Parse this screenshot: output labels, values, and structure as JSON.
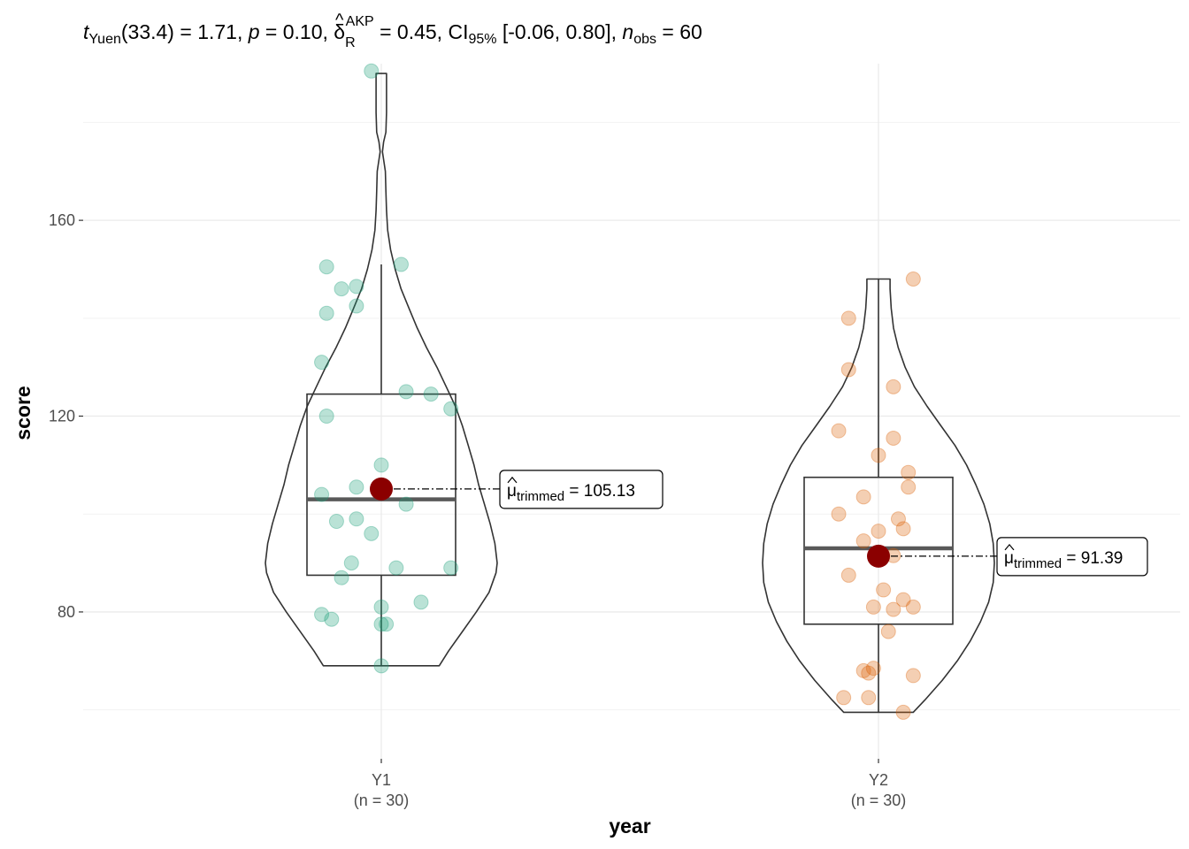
{
  "chart_data": {
    "type": "violin",
    "title": {
      "t_symbol": "t",
      "t_sub": "Yuen",
      "df": "(33.4)",
      "t_value": "1.71",
      "p_symbol": "p",
      "p_value": "0.10",
      "effect_symbol": "δ",
      "effect_hat": "^",
      "effect_sup": "AKP",
      "effect_sub": "R",
      "effect_value": "0.45",
      "ci_label": "CI",
      "ci_sub": "95%",
      "ci_value": "[-0.06, 0.80]",
      "n_symbol": "n",
      "n_sub": "obs",
      "n_value": "60"
    },
    "xlabel": "year",
    "ylabel": "score",
    "ylim": [
      50,
      192
    ],
    "y_ticks": [
      80,
      120,
      160
    ],
    "grid": true,
    "groups": [
      {
        "name": "Y1",
        "n_label": "(n = 30)",
        "color": "#1b9e77",
        "box": {
          "q1": 87.5,
          "median": 103,
          "q3": 124.5,
          "whisker_low": 69,
          "whisker_high": 151
        },
        "trimmed_mean": 105.13,
        "mean_label_sym": "μ",
        "mean_label_sub": "trimmed",
        "mean_label_value": "105.13",
        "violin": [
          [
            69,
            0.5
          ],
          [
            72,
            0.58
          ],
          [
            76,
            0.7
          ],
          [
            80,
            0.82
          ],
          [
            84,
            0.93
          ],
          [
            88,
            0.99
          ],
          [
            90,
            1.0
          ],
          [
            94,
            0.98
          ],
          [
            98,
            0.94
          ],
          [
            102,
            0.89
          ],
          [
            106,
            0.84
          ],
          [
            110,
            0.8
          ],
          [
            114,
            0.75
          ],
          [
            118,
            0.7
          ],
          [
            122,
            0.64
          ],
          [
            126,
            0.56
          ],
          [
            130,
            0.48
          ],
          [
            134,
            0.39
          ],
          [
            138,
            0.31
          ],
          [
            142,
            0.24
          ],
          [
            146,
            0.17
          ],
          [
            150,
            0.12
          ],
          [
            154,
            0.08
          ],
          [
            158,
            0.055
          ],
          [
            162,
            0.045
          ],
          [
            166,
            0.04
          ],
          [
            170,
            0.035
          ],
          [
            174,
            0.01
          ],
          [
            176,
            0.02
          ],
          [
            178,
            0.04
          ],
          [
            182,
            0.045
          ],
          [
            186,
            0.045
          ],
          [
            190,
            0.045
          ]
        ],
        "points": [
          [
            -0.02,
            190.5
          ],
          [
            0.04,
            151
          ],
          [
            -0.11,
            150.5
          ],
          [
            -0.08,
            146
          ],
          [
            -0.05,
            146.5
          ],
          [
            -0.05,
            142.5
          ],
          [
            -0.11,
            141
          ],
          [
            -0.12,
            131
          ],
          [
            -0.11,
            120
          ],
          [
            0.05,
            125
          ],
          [
            0.1,
            124.5
          ],
          [
            0.14,
            121.5
          ],
          [
            0.0,
            110
          ],
          [
            -0.05,
            105.5
          ],
          [
            -0.12,
            104
          ],
          [
            0.05,
            102
          ],
          [
            -0.05,
            99
          ],
          [
            -0.09,
            98.5
          ],
          [
            -0.02,
            96
          ],
          [
            -0.06,
            90
          ],
          [
            0.03,
            89
          ],
          [
            0.14,
            89
          ],
          [
            -0.08,
            87
          ],
          [
            0.0,
            81
          ],
          [
            0.08,
            82
          ],
          [
            -0.12,
            79.5
          ],
          [
            -0.1,
            78.5
          ],
          [
            0.0,
            77.5
          ],
          [
            0.01,
            77.5
          ],
          [
            0.0,
            69
          ]
        ]
      },
      {
        "name": "Y2",
        "n_label": "(n = 30)",
        "color": "#d95f02",
        "box": {
          "q1": 77.5,
          "median": 93,
          "q3": 107.5,
          "whisker_low": 59.5,
          "whisker_high": 148
        },
        "trimmed_mean": 91.39,
        "mean_label_sym": "μ",
        "mean_label_sub": "trimmed",
        "mean_label_value": "91.39",
        "violin": [
          [
            59.5,
            0.3
          ],
          [
            62,
            0.4
          ],
          [
            66,
            0.55
          ],
          [
            70,
            0.68
          ],
          [
            74,
            0.79
          ],
          [
            78,
            0.88
          ],
          [
            82,
            0.95
          ],
          [
            86,
            0.99
          ],
          [
            90,
            1.0
          ],
          [
            94,
            0.99
          ],
          [
            98,
            0.96
          ],
          [
            102,
            0.91
          ],
          [
            106,
            0.84
          ],
          [
            110,
            0.76
          ],
          [
            114,
            0.66
          ],
          [
            118,
            0.54
          ],
          [
            122,
            0.42
          ],
          [
            126,
            0.31
          ],
          [
            130,
            0.23
          ],
          [
            134,
            0.17
          ],
          [
            138,
            0.13
          ],
          [
            142,
            0.11
          ],
          [
            146,
            0.1
          ],
          [
            148,
            0.1
          ]
        ],
        "points": [
          [
            0.07,
            148
          ],
          [
            -0.06,
            140
          ],
          [
            -0.06,
            129.5
          ],
          [
            0.03,
            126
          ],
          [
            -0.08,
            117
          ],
          [
            0.03,
            115.5
          ],
          [
            0.0,
            112
          ],
          [
            0.06,
            108.5
          ],
          [
            0.06,
            105.5
          ],
          [
            -0.03,
            103.5
          ],
          [
            -0.08,
            100
          ],
          [
            0.04,
            99
          ],
          [
            0.05,
            97
          ],
          [
            0.0,
            96.5
          ],
          [
            -0.03,
            94.5
          ],
          [
            0.03,
            91.5
          ],
          [
            -0.06,
            87.5
          ],
          [
            0.01,
            84.5
          ],
          [
            0.05,
            82.5
          ],
          [
            0.07,
            81
          ],
          [
            -0.01,
            81
          ],
          [
            0.03,
            80.5
          ],
          [
            0.02,
            76
          ],
          [
            -0.01,
            68.5
          ],
          [
            -0.03,
            68
          ],
          [
            -0.02,
            67.5
          ],
          [
            0.07,
            67
          ],
          [
            -0.07,
            62.5
          ],
          [
            -0.02,
            62.5
          ],
          [
            0.05,
            59.5
          ]
        ]
      }
    ]
  }
}
